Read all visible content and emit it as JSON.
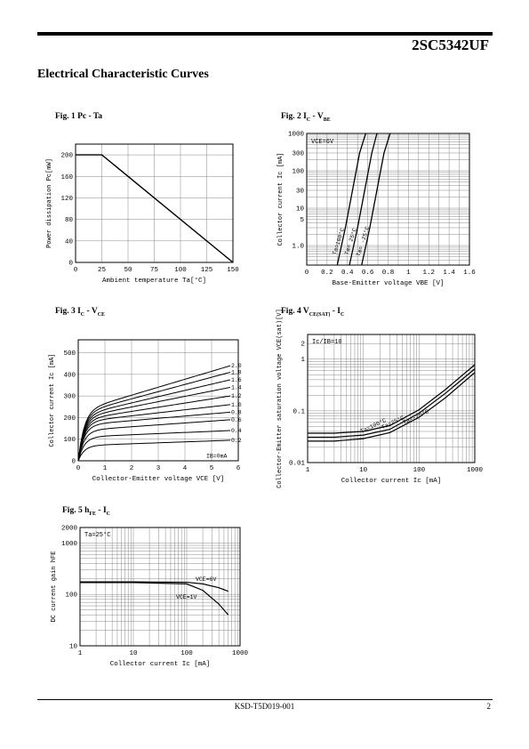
{
  "header": {
    "part_number": "2SC5342UF"
  },
  "section_title": "Electrical Characteristic Curves",
  "footer": {
    "doc_id": "KSD-T5D019-001",
    "page": "2"
  },
  "figures": [
    {
      "caption_main": "Fig. 1 Pc - Ta"
    },
    {
      "caption_main": "Fig. 2 I",
      "caption_sub1": "C",
      "caption_mid": " - V",
      "caption_sub2": "BE"
    },
    {
      "caption_main": "Fig. 3 I",
      "caption_sub1": "C",
      "caption_mid": " - V",
      "caption_sub2": "CE"
    },
    {
      "caption_main": "Fig. 4 V",
      "caption_sub1": "CE(SAT)",
      "caption_mid": " - I",
      "caption_sub2": "C"
    },
    {
      "caption_main": "Fig. 5 h",
      "caption_sub1": "FE",
      "caption_mid": " - I",
      "caption_sub2": "C"
    }
  ],
  "chart_data": [
    {
      "type": "line",
      "xlabel": "Ambient temperature Ta[°C]",
      "ylabel": "Power dissipation Pc[mW]",
      "xlim": [
        0,
        150
      ],
      "ylim": [
        0,
        220
      ],
      "xticks": [
        0,
        25,
        50,
        75,
        100,
        125,
        150
      ],
      "yticks": [
        0,
        40,
        80,
        120,
        160,
        200
      ],
      "series": [
        {
          "x": [
            0,
            25,
            150
          ],
          "y": [
            200,
            200,
            0
          ]
        }
      ]
    },
    {
      "type": "line",
      "xlabel": "Base-Emitter voltage VBE [V]",
      "ylabel": "Collector current Ic [mA]",
      "xlim": [
        0,
        1.6
      ],
      "ylim": [
        0.3,
        1000
      ],
      "yscale": "log",
      "xticks": [
        0,
        0.2,
        0.4,
        0.6,
        0.8,
        1.0,
        1.2,
        1.4,
        1.6
      ],
      "yticks": [
        1.0,
        5,
        10,
        30,
        100,
        300,
        1000
      ],
      "ytick_labels": [
        "1.0",
        "5",
        "10",
        "30",
        "100",
        "300",
        "1000"
      ],
      "condition": "VCE=6V",
      "series": [
        {
          "name": "Ta=100°C",
          "x": [
            0.3,
            0.38,
            0.45,
            0.52,
            0.58
          ],
          "y": [
            0.3,
            3,
            30,
            300,
            1000
          ]
        },
        {
          "name": "Ta= 25°C",
          "x": [
            0.42,
            0.5,
            0.57,
            0.64,
            0.69
          ],
          "y": [
            0.3,
            3,
            30,
            300,
            1000
          ]
        },
        {
          "name": "Ta= -25°C",
          "x": [
            0.54,
            0.62,
            0.69,
            0.76,
            0.82
          ],
          "y": [
            0.3,
            3,
            30,
            300,
            1000
          ]
        }
      ]
    },
    {
      "type": "line",
      "xlabel": "Collector-Emitter voltage VCE [V]",
      "ylabel": "Collector current Ic [mA]",
      "xlim": [
        0,
        6
      ],
      "ylim": [
        0,
        560
      ],
      "xticks": [
        0,
        1,
        2,
        3,
        4,
        5,
        6
      ],
      "yticks": [
        0,
        100,
        200,
        300,
        400,
        500
      ],
      "condition": "IB=0mA",
      "series": [
        {
          "name": "0.2",
          "y_end": 95,
          "y_knee": 70
        },
        {
          "name": "0.4",
          "y_end": 140,
          "y_knee": 110
        },
        {
          "name": "0.6",
          "y_end": 190,
          "y_knee": 140
        },
        {
          "name": "0.8",
          "y_end": 225,
          "y_knee": 165
        },
        {
          "name": "1.0",
          "y_end": 260,
          "y_knee": 180
        },
        {
          "name": "1.2",
          "y_end": 300,
          "y_knee": 190
        },
        {
          "name": "1.4",
          "y_end": 340,
          "y_knee": 200
        },
        {
          "name": "1.6",
          "y_end": 375,
          "y_knee": 210
        },
        {
          "name": "1.8",
          "y_end": 410,
          "y_knee": 220
        },
        {
          "name": "2.0",
          "y_end": 440,
          "y_knee": 230
        }
      ]
    },
    {
      "type": "line",
      "xlabel": "Collector current Ic [mA]",
      "ylabel": "Collector-Emitter saturation voltage VCE(sat)[V]",
      "xlim": [
        1,
        1000
      ],
      "ylim": [
        0.01,
        3
      ],
      "xscale": "log",
      "yscale": "log",
      "xticks": [
        1,
        10,
        100,
        1000
      ],
      "yticks": [
        0.01,
        0.1,
        1,
        2
      ],
      "ytick_labels": [
        "0.01",
        "0.1",
        "1",
        "2"
      ],
      "condition": "Ic/IB=10",
      "series": [
        {
          "name": "Ta=100°C",
          "x": [
            1,
            3,
            10,
            30,
            100,
            300,
            1000
          ],
          "y": [
            0.026,
            0.026,
            0.029,
            0.038,
            0.075,
            0.18,
            0.55
          ]
        },
        {
          "name": "Ta=25°C",
          "x": [
            1,
            3,
            10,
            30,
            100,
            300,
            1000
          ],
          "y": [
            0.031,
            0.031,
            0.034,
            0.044,
            0.09,
            0.22,
            0.65
          ]
        },
        {
          "name": "Ta=-25°C",
          "x": [
            1,
            3,
            10,
            30,
            100,
            300,
            1000
          ],
          "y": [
            0.037,
            0.037,
            0.04,
            0.052,
            0.105,
            0.26,
            0.78
          ]
        }
      ]
    },
    {
      "type": "line",
      "xlabel": "Collector current Ic [mA]",
      "ylabel": "DC current gain hFE",
      "xlim": [
        1,
        1000
      ],
      "ylim": [
        10,
        2000
      ],
      "xscale": "log",
      "yscale": "log",
      "xticks": [
        1,
        10,
        100,
        1000
      ],
      "yticks": [
        10,
        100,
        1000,
        2000
      ],
      "condition": "Ta=25°C",
      "series": [
        {
          "name": "VCE=6V",
          "x": [
            1,
            10,
            100,
            200,
            400,
            600
          ],
          "y": [
            175,
            175,
            172,
            160,
            135,
            115
          ]
        },
        {
          "name": "VCE=1V",
          "x": [
            1,
            10,
            100,
            200,
            400,
            600
          ],
          "y": [
            170,
            170,
            160,
            120,
            65,
            40
          ]
        }
      ]
    }
  ]
}
